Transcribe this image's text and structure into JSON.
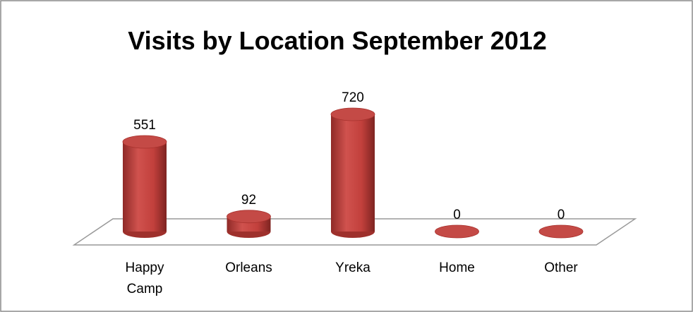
{
  "chart_data": {
    "type": "bar",
    "title": "Visits by Location September 2012",
    "categories": [
      "Happy Camp",
      "Orleans",
      "Yreka",
      "Home",
      "Other"
    ],
    "values": [
      551,
      92,
      720,
      0,
      0
    ],
    "color": "#c0504d"
  }
}
